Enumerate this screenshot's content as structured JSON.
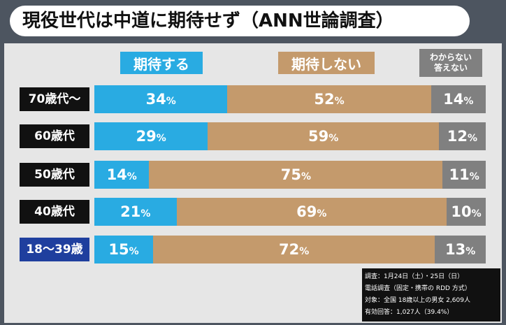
{
  "chart_data": {
    "type": "stacked_bar_horizontal",
    "title": "現役世代は中道に期待せず（ANN世論調査）",
    "categories": [
      "70歳代～",
      "60歳代",
      "50歳代",
      "40歳代",
      "18～39歳"
    ],
    "series": [
      {
        "name": "期待する",
        "color": "#29abe2",
        "values": [
          34,
          29,
          14,
          21,
          15
        ],
        "value_labels": [
          "34%",
          "29%",
          "14%",
          "21%",
          "15%"
        ]
      },
      {
        "name": "期待しない",
        "color": "#c49a6c",
        "values": [
          52,
          59,
          75,
          69,
          72
        ],
        "value_labels": [
          "52%",
          "59%",
          "75%",
          "69%",
          "72%"
        ]
      },
      {
        "name": "わからない\n答えない",
        "color": "#808080",
        "values": [
          14,
          12,
          11,
          10,
          13
        ],
        "value_labels": [
          "14%",
          "12%",
          "11%",
          "10%",
          "13%"
        ]
      }
    ],
    "xlim": [
      0,
      100
    ],
    "notes": [
      "調査：1月24日（土）・25日（日）",
      "電話調査（固定・携帯の RDD 方式）",
      "対象：全国 18歳以上の男女 2,609人",
      "有効回答：1,027人（39.4%）"
    ]
  }
}
